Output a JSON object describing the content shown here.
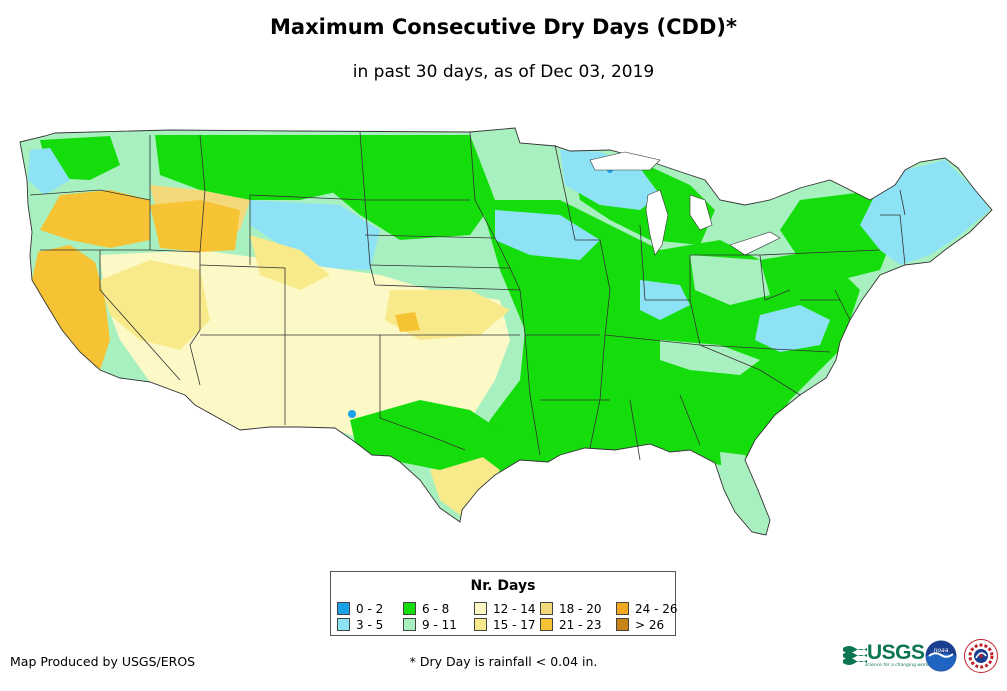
{
  "title": "Maximum Consecutive Dry Days (CDD)*",
  "subtitle": "in past 30 days, as of Dec 03, 2019",
  "legend": {
    "title": "Nr. Days",
    "items": [
      {
        "label": "0 - 2",
        "color": "#1aa0e6"
      },
      {
        "label": "3 - 5",
        "color": "#8ee2f5"
      },
      {
        "label": "6 - 8",
        "color": "#15dd0c"
      },
      {
        "label": "9 - 11",
        "color": "#a9f0c0"
      },
      {
        "label": "12 - 14",
        "color": "#fcf9c6"
      },
      {
        "label": "15 - 17",
        "color": "#f8ea8a"
      },
      {
        "label": "18 - 20",
        "color": "#f4d97a"
      },
      {
        "label": "21 - 23",
        "color": "#f6c335"
      },
      {
        "label": "24 - 26",
        "color": "#f2a821"
      },
      {
        "label": "> 26",
        "color": "#c98418"
      }
    ]
  },
  "footer": {
    "credit": "Map Produced by USGS/EROS",
    "note": "* Dry Day is rainfall < 0.04 in."
  },
  "logos": {
    "usgs": "USGS",
    "usgs_tagline": "science for a changing world",
    "noaa": "noaa"
  }
}
